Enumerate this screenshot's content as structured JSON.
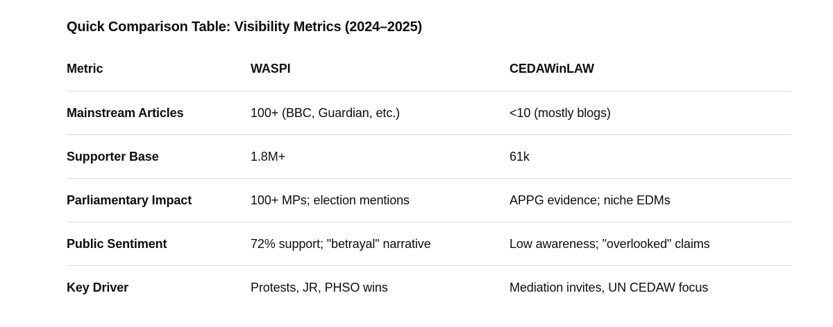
{
  "title": "Quick Comparison Table: Visibility Metrics (2024–2025)",
  "table": {
    "columns": {
      "metric": "Metric",
      "waspi": "WASPI",
      "cedawinlaw": "CEDAWinLAW"
    },
    "rows": [
      {
        "metric": "Mainstream Articles",
        "waspi": "100+ (BBC, Guardian, etc.)",
        "cedawinlaw": "<10 (mostly blogs)"
      },
      {
        "metric": "Supporter Base",
        "waspi": "1.8M+",
        "cedawinlaw": "61k"
      },
      {
        "metric": "Parliamentary Impact",
        "waspi": "100+ MPs; election mentions",
        "cedawinlaw": "APPG evidence; niche EDMs"
      },
      {
        "metric": "Public Sentiment",
        "waspi": "72% support; \"betrayal\" narrative",
        "cedawinlaw": "Low awareness; \"overlooked\" claims"
      },
      {
        "metric": "Key Driver",
        "waspi": "Protests, JR, PHSO wins",
        "cedawinlaw": "Mediation invites, UN CEDAW focus"
      }
    ]
  },
  "colors": {
    "text": "#0d0d0d",
    "divider": "#d9d9d9",
    "background": "#ffffff"
  }
}
